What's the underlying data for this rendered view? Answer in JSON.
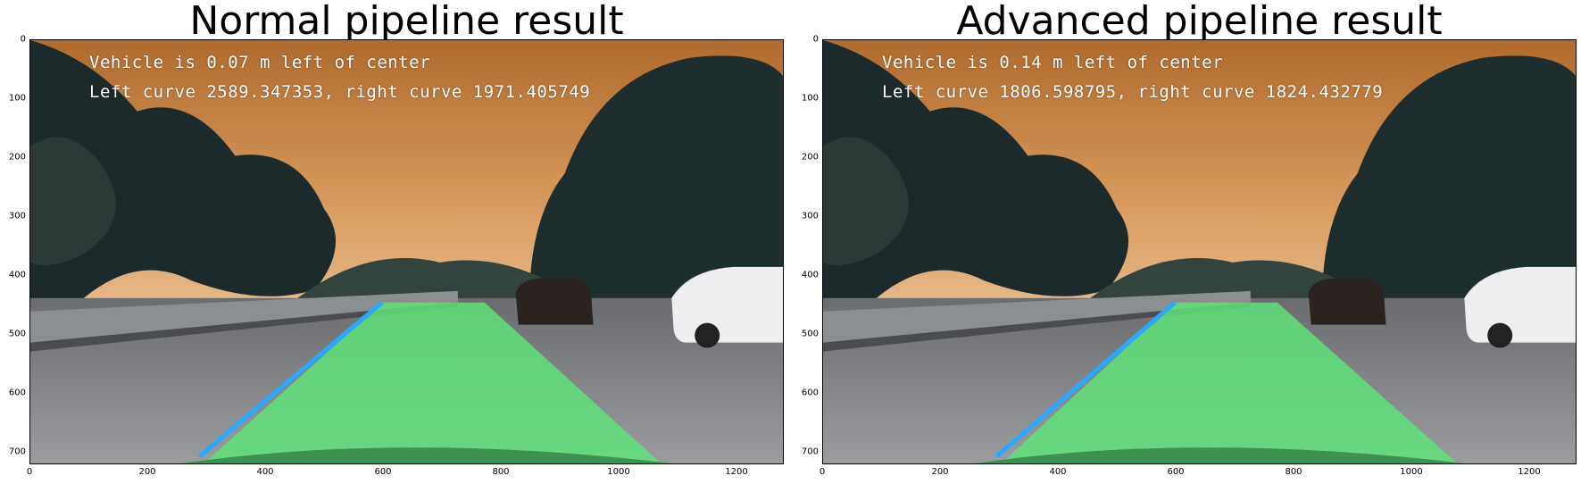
{
  "panels": [
    {
      "title": "Normal pipeline result",
      "overlay_line1": "Vehicle is 0.07 m left of center",
      "overlay_line2": "Left curve 2589.347353, right curve 1971.405749"
    },
    {
      "title": "Advanced pipeline result",
      "overlay_line1": "Vehicle is 0.14 m left of center",
      "overlay_line2": "Left curve 1806.598795, right curve 1824.432779"
    }
  ],
  "axes": {
    "xticks": [
      "0",
      "200",
      "400",
      "600",
      "800",
      "1000",
      "1200"
    ],
    "yticks": [
      "0",
      "100",
      "200",
      "300",
      "400",
      "500",
      "600",
      "700"
    ]
  },
  "colors": {
    "lane_fill": "#5fe27a",
    "lane_line": "#2aa8ff",
    "sky": "#c88a4e"
  }
}
